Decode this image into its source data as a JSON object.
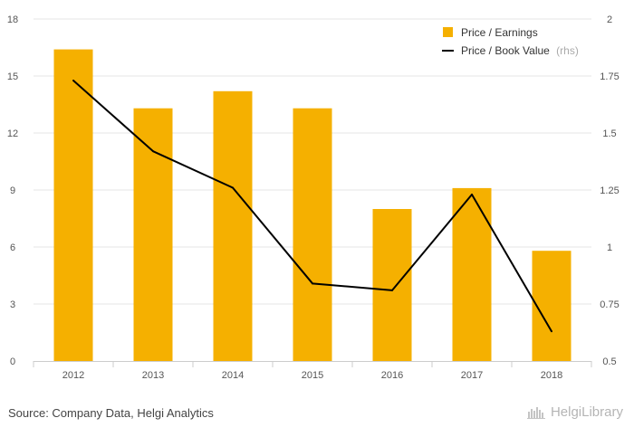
{
  "chart_data": {
    "type": "bar",
    "categories": [
      "2012",
      "2013",
      "2014",
      "2015",
      "2016",
      "2017",
      "2018"
    ],
    "series": [
      {
        "name": "Price / Earnings",
        "type": "bar",
        "axis": "left",
        "color": "#f5b000",
        "values": [
          16.4,
          13.3,
          14.2,
          13.3,
          8.0,
          9.1,
          5.8
        ]
      },
      {
        "name": "Price / Book Value",
        "note": "(rhs)",
        "type": "line",
        "axis": "right",
        "color": "#000000",
        "values": [
          1.73,
          1.42,
          1.26,
          0.84,
          0.81,
          1.23,
          0.63
        ]
      }
    ],
    "ylim_left": [
      0,
      18
    ],
    "yticks_left": [
      "0",
      "3",
      "6",
      "9",
      "12",
      "15",
      "18"
    ],
    "ylim_right": [
      0.5,
      2
    ],
    "yticks_right": [
      "0.5",
      "0.75",
      "1",
      "1.25",
      "1.5",
      "1.75",
      "2"
    ],
    "grid": true,
    "legend_position": "top-right"
  },
  "footer": {
    "source": "Source: Company Data, Helgi Analytics",
    "logo_text": "HelgiLibrary",
    "logo_icon": "helgi-library-icon"
  }
}
